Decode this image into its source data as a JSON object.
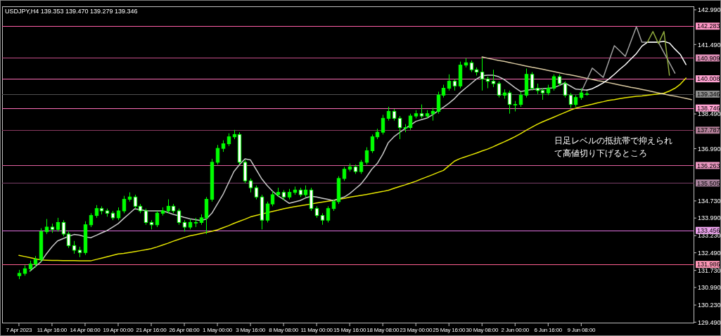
{
  "chart_data": {
    "type": "candlestick",
    "title": "USDJPY,H4  139.353 139.470 139.279 139.346",
    "annotations": [
      "日足レベルの抵抗帯で抑えられて高値切り下げるところ"
    ],
    "categories": [
      "7 Apr 2023",
      null,
      null,
      null,
      null,
      null,
      "11 Apr 16:00",
      null,
      null,
      null,
      null,
      null,
      "14 Apr 08:00",
      null,
      null,
      null,
      null,
      null,
      "19 Apr 00:00",
      null,
      null,
      null,
      null,
      null,
      "21 Apr 16:00",
      null,
      null,
      null,
      null,
      null,
      "26 Apr 08:00",
      null,
      null,
      null,
      null,
      null,
      "1 May 00:00",
      null,
      null,
      null,
      null,
      null,
      "3 May 16:00",
      null,
      null,
      null,
      null,
      null,
      "8 May 08:00",
      null,
      null,
      null,
      null,
      null,
      "11 May 00:00",
      null,
      null,
      null,
      null,
      null,
      "15 May 16:00",
      null,
      null,
      null,
      null,
      null,
      "18 May 08:00",
      null,
      null,
      null,
      null,
      null,
      "23 May 00:00",
      null,
      null,
      null,
      null,
      null,
      "25 May 16:00",
      null,
      null,
      null,
      null,
      null,
      "30 May 08:00",
      null,
      null,
      null,
      null,
      null,
      "2 Jun 00:00",
      null,
      null,
      null,
      null,
      null,
      "6 Jun 16:00",
      null,
      null,
      null,
      null,
      null,
      "9 Jun 08:00",
      null,
      null,
      null,
      null,
      null,
      null,
      null,
      null,
      null,
      null,
      null,
      null,
      null,
      null,
      null,
      null,
      null,
      null,
      null,
      null
    ],
    "ylim": [
      129.44,
      143.14
    ],
    "yticks": [
      {
        "value": 142.99,
        "label": "142.990"
      },
      {
        "value": 141.49,
        "label": "141.490"
      },
      {
        "value": 138.49,
        "label": "138.490"
      },
      {
        "value": 136.99,
        "label": "136.990"
      },
      {
        "value": 134.73,
        "label": "134.730"
      },
      {
        "value": 133.99,
        "label": "133.990"
      },
      {
        "value": 133.23,
        "label": "133.230"
      },
      {
        "value": 132.49,
        "label": "132.490"
      },
      {
        "value": 131.73,
        "label": "131.730"
      },
      {
        "value": 130.99,
        "label": "130.990"
      },
      {
        "value": 130.23,
        "label": "130.230"
      },
      {
        "value": 129.49,
        "label": "129.490"
      }
    ],
    "ref_lines": [
      {
        "axis": "y",
        "value": 142.283,
        "label": "142.283",
        "color": "#ff5fa8"
      },
      {
        "axis": "y",
        "value": 140.909,
        "label": "140.909",
        "color": "#c8508c"
      },
      {
        "axis": "y",
        "value": 140.008,
        "label": "140.008",
        "color": "#ff70b8"
      },
      {
        "axis": "y",
        "value": 139.346,
        "label": "139.346",
        "color": "#505050"
      },
      {
        "axis": "y",
        "value": 138.746,
        "label": "138.746",
        "color": "#ff70b8"
      },
      {
        "axis": "y",
        "value": 137.787,
        "label": "137.787",
        "color": "#8a3a60"
      },
      {
        "axis": "y",
        "value": 136.263,
        "label": "136.263",
        "color": "#e0609f"
      },
      {
        "axis": "y",
        "value": 135.505,
        "label": "135.505",
        "color": "#7a4068"
      },
      {
        "axis": "y",
        "value": 133.456,
        "label": "133.456",
        "color": "#e070e0"
      },
      {
        "axis": "y",
        "value": 131.986,
        "label": "131.986",
        "color": "#ff6090"
      }
    ],
    "series": [
      {
        "type": "line",
        "color": "#e6e600",
        "values": [
          132.38,
          132.33,
          132.28,
          132.23,
          132.18,
          132.17,
          132.16,
          132.16,
          132.15,
          132.15,
          132.15,
          132.14,
          132.14,
          132.14,
          132.2,
          132.26,
          132.32,
          132.38,
          132.44,
          132.46,
          132.5,
          132.54,
          132.58,
          132.62,
          132.67,
          132.74,
          132.82,
          132.9,
          132.99,
          133.07,
          133.15,
          133.22,
          133.27,
          133.32,
          133.37,
          133.42,
          133.48,
          133.57,
          133.66,
          133.76,
          133.85,
          133.94,
          134.04,
          134.1,
          134.16,
          134.22,
          134.28,
          134.33,
          134.39,
          134.44,
          134.48,
          134.52,
          134.56,
          134.6,
          134.64,
          134.68,
          134.72,
          134.75,
          134.8,
          134.84,
          134.89,
          134.93,
          134.97,
          135.01,
          135.05,
          135.1,
          135.14,
          135.19,
          135.27,
          135.35,
          135.42,
          135.5,
          135.58,
          135.68,
          135.77,
          135.86,
          135.96,
          136.05,
          136.25,
          136.45,
          136.56,
          136.64,
          136.72,
          136.8,
          136.89,
          136.97,
          137.07,
          137.18,
          137.28,
          137.39,
          137.51,
          137.64,
          137.78,
          137.91,
          138.04,
          138.15,
          138.25,
          138.35,
          138.45,
          138.55,
          138.65,
          138.74,
          138.8,
          138.86,
          138.91,
          138.97,
          139.02,
          139.08,
          139.11,
          139.15,
          139.19,
          139.22,
          139.25,
          139.27,
          139.3,
          139.33,
          139.36,
          139.39,
          139.48,
          139.6,
          139.78,
          140.04,
          null
        ]
      },
      {
        "type": "line",
        "color": "#c8c8c8",
        "values": [
          null,
          null,
          131.7,
          131.9,
          132.1,
          132.45,
          132.75,
          133.0,
          133.1,
          133.2,
          133.28,
          133.25,
          133.18,
          133.14,
          133.24,
          133.35,
          133.45,
          133.6,
          133.75,
          133.97,
          134.18,
          134.39,
          134.35,
          134.31,
          134.3,
          134.3,
          134.3,
          134.23,
          134.15,
          134.09,
          134.02,
          133.96,
          133.92,
          133.88,
          133.95,
          134.2,
          134.6,
          135.0,
          135.5,
          136.0,
          136.3,
          136.55,
          136.5,
          136.1,
          135.7,
          135.4,
          135.15,
          134.95,
          134.8,
          134.63,
          134.69,
          134.75,
          134.86,
          134.93,
          134.9,
          134.85,
          134.8,
          134.75,
          134.82,
          134.9,
          135.05,
          135.25,
          135.45,
          135.75,
          136.1,
          136.35,
          136.75,
          137.25,
          137.5,
          137.68,
          137.85,
          138.0,
          138.17,
          138.24,
          138.31,
          138.45,
          138.62,
          138.78,
          138.95,
          139.15,
          139.4,
          139.6,
          139.8,
          140.0,
          140.14,
          140.16,
          140.16,
          140.1,
          139.98,
          139.8,
          139.62,
          139.46,
          139.5,
          139.55,
          139.56,
          139.58,
          139.6,
          139.62,
          139.72,
          139.83,
          139.7,
          139.56,
          139.54,
          139.52,
          null,
          null,
          null,
          null,
          null,
          null,
          null,
          null,
          null,
          null,
          null,
          null,
          null,
          null,
          null,
          null,
          null,
          null,
          null
        ]
      },
      {
        "type": "line",
        "color": "#d8c8a0",
        "values": [
          null,
          null,
          null,
          null,
          null,
          null,
          null,
          null,
          null,
          null,
          null,
          null,
          null,
          null,
          null,
          null,
          null,
          null,
          null,
          null,
          null,
          null,
          null,
          null,
          null,
          null,
          null,
          null,
          null,
          null,
          null,
          null,
          null,
          null,
          null,
          null,
          null,
          null,
          null,
          null,
          null,
          null,
          null,
          null,
          null,
          null,
          null,
          null,
          null,
          null,
          null,
          null,
          null,
          null,
          null,
          null,
          null,
          null,
          null,
          null,
          null,
          null,
          null,
          null,
          null,
          null,
          null,
          null,
          null,
          null,
          null,
          null,
          null,
          null,
          null,
          null,
          null,
          null,
          null,
          null,
          null,
          null,
          null,
          null,
          140.95,
          140.9,
          140.85,
          140.8,
          140.76,
          140.71,
          140.66,
          140.61,
          140.56,
          140.51,
          140.47,
          140.42,
          140.37,
          140.32,
          140.27,
          140.22,
          140.18,
          140.13,
          140.08,
          140.03,
          139.98,
          139.93,
          139.89,
          139.84,
          139.79,
          139.74,
          139.69,
          139.64,
          139.6,
          139.55,
          139.5,
          139.45,
          139.4,
          139.35,
          139.3,
          139.26,
          139.21,
          139.16,
          139.11
        ]
      },
      {
        "type": "line",
        "color": "#a0a0a0",
        "values": [
          null,
          null,
          null,
          null,
          null,
          null,
          null,
          null,
          null,
          null,
          null,
          null,
          null,
          null,
          null,
          null,
          null,
          null,
          null,
          null,
          null,
          null,
          null,
          null,
          null,
          null,
          null,
          null,
          null,
          null,
          null,
          null,
          null,
          null,
          null,
          null,
          null,
          null,
          null,
          null,
          null,
          null,
          null,
          null,
          null,
          null,
          null,
          null,
          null,
          null,
          null,
          null,
          null,
          null,
          null,
          null,
          null,
          null,
          null,
          null,
          null,
          null,
          null,
          null,
          null,
          null,
          null,
          null,
          null,
          null,
          null,
          null,
          null,
          null,
          null,
          null,
          null,
          null,
          null,
          null,
          null,
          null,
          null,
          null,
          null,
          null,
          null,
          null,
          null,
          null,
          null,
          null,
          null,
          null,
          null,
          null,
          null,
          null,
          null,
          null,
          null,
          null,
          139.44,
          139.95,
          140.47,
          140.27,
          140.07,
          140.76,
          141.44,
          141.21,
          140.98,
          141.62,
          142.26,
          141.59,
          141.59,
          141.59,
          141.59,
          141.14,
          140.7,
          140.25,
          null,
          null,
          null
        ]
      },
      {
        "type": "line",
        "color": "#ffffff",
        "values": [
          null,
          null,
          null,
          null,
          null,
          null,
          null,
          null,
          null,
          null,
          null,
          null,
          null,
          null,
          null,
          null,
          null,
          null,
          null,
          null,
          null,
          null,
          null,
          null,
          null,
          null,
          null,
          null,
          null,
          null,
          null,
          null,
          null,
          null,
          null,
          null,
          null,
          null,
          null,
          null,
          null,
          null,
          null,
          null,
          null,
          null,
          null,
          null,
          null,
          null,
          null,
          null,
          null,
          null,
          null,
          null,
          null,
          null,
          null,
          null,
          null,
          null,
          null,
          null,
          null,
          null,
          null,
          null,
          null,
          null,
          null,
          null,
          null,
          null,
          null,
          null,
          null,
          null,
          null,
          null,
          null,
          null,
          null,
          null,
          null,
          null,
          null,
          null,
          null,
          null,
          null,
          null,
          null,
          null,
          null,
          null,
          null,
          null,
          null,
          null,
          null,
          null,
          null,
          139.52,
          139.58,
          139.7,
          139.83,
          140.0,
          140.2,
          140.42,
          140.62,
          140.86,
          141.1,
          141.42,
          141.59,
          141.59,
          141.59,
          141.63,
          141.55,
          141.29,
          141.05,
          140.62,
          null
        ]
      },
      {
        "type": "line",
        "color": "#8faa3c",
        "values": [
          null,
          null,
          null,
          null,
          null,
          null,
          null,
          null,
          null,
          null,
          null,
          null,
          null,
          null,
          null,
          null,
          null,
          null,
          null,
          null,
          null,
          null,
          null,
          null,
          null,
          null,
          null,
          null,
          null,
          null,
          null,
          null,
          null,
          null,
          null,
          null,
          null,
          null,
          null,
          null,
          null,
          null,
          null,
          null,
          null,
          null,
          null,
          null,
          null,
          null,
          null,
          null,
          null,
          null,
          null,
          null,
          null,
          null,
          null,
          null,
          null,
          null,
          null,
          null,
          null,
          null,
          null,
          null,
          null,
          null,
          null,
          null,
          null,
          null,
          null,
          null,
          null,
          null,
          null,
          null,
          null,
          null,
          null,
          null,
          null,
          null,
          null,
          null,
          null,
          null,
          null,
          null,
          null,
          null,
          null,
          null,
          null,
          null,
          null,
          null,
          null,
          null,
          null,
          null,
          null,
          null,
          null,
          null,
          null,
          null,
          null,
          null,
          null,
          null,
          141.59,
          142.05,
          141.53,
          142.05,
          140.16,
          null,
          null,
          null,
          null
        ]
      },
      {
        "color": "#00ff00",
        "ohlc": [
          [
            131.5,
            131.75,
            131.35,
            131.6
          ],
          [
            131.6,
            131.95,
            131.5,
            131.8
          ],
          [
            131.8,
            132.15,
            131.7,
            132.0
          ],
          [
            132.0,
            132.35,
            131.85,
            132.2
          ],
          [
            132.2,
            133.55,
            132.1,
            133.4
          ],
          [
            133.4,
            133.95,
            133.3,
            133.6
          ],
          [
            133.6,
            133.75,
            133.35,
            133.5
          ],
          [
            133.5,
            134.0,
            133.4,
            133.8
          ],
          [
            133.8,
            133.9,
            133.2,
            133.3
          ],
          [
            133.3,
            133.4,
            132.7,
            132.8
          ],
          [
            132.8,
            133.0,
            132.45,
            132.6
          ],
          [
            132.6,
            132.75,
            132.3,
            132.5
          ],
          [
            132.5,
            133.85,
            132.4,
            133.7
          ],
          [
            133.7,
            134.2,
            133.6,
            134.1
          ],
          [
            134.1,
            134.55,
            134.0,
            134.4
          ],
          [
            134.4,
            134.5,
            134.15,
            134.3
          ],
          [
            134.3,
            134.4,
            134.05,
            134.2
          ],
          [
            134.2,
            134.3,
            133.9,
            134.0
          ],
          [
            134.0,
            134.45,
            133.9,
            134.3
          ],
          [
            134.3,
            134.95,
            134.2,
            134.8
          ],
          [
            134.8,
            135.1,
            134.7,
            134.9
          ],
          [
            134.9,
            135.0,
            134.4,
            134.5
          ],
          [
            134.5,
            134.6,
            134.2,
            134.3
          ],
          [
            134.3,
            134.4,
            133.7,
            133.8
          ],
          [
            133.8,
            133.9,
            133.5,
            133.7
          ],
          [
            133.7,
            134.3,
            133.6,
            134.2
          ],
          [
            134.2,
            134.45,
            134.1,
            134.3
          ],
          [
            134.3,
            134.8,
            134.2,
            134.5
          ],
          [
            134.5,
            134.6,
            134.2,
            134.3
          ],
          [
            134.3,
            134.4,
            133.7,
            133.8
          ],
          [
            133.8,
            133.9,
            133.4,
            133.6
          ],
          [
            133.6,
            133.95,
            133.5,
            133.8
          ],
          [
            133.8,
            134.0,
            133.6,
            133.8
          ],
          [
            133.8,
            134.15,
            133.7,
            134.0
          ],
          [
            134.0,
            134.9,
            133.3,
            134.8
          ],
          [
            134.8,
            136.55,
            134.7,
            136.4
          ],
          [
            136.4,
            137.15,
            136.3,
            137.0
          ],
          [
            137.0,
            137.35,
            136.85,
            137.2
          ],
          [
            137.2,
            137.65,
            137.1,
            137.5
          ],
          [
            137.5,
            137.8,
            137.4,
            137.6
          ],
          [
            137.6,
            137.7,
            136.3,
            136.4
          ],
          [
            136.4,
            136.5,
            135.5,
            135.6
          ],
          [
            135.6,
            135.7,
            135.1,
            135.3
          ],
          [
            135.3,
            135.4,
            134.8,
            134.9
          ],
          [
            134.9,
            135.0,
            133.5,
            133.9
          ],
          [
            133.9,
            134.7,
            133.8,
            134.6
          ],
          [
            134.6,
            135.15,
            134.5,
            135.0
          ],
          [
            135.0,
            135.3,
            134.9,
            135.1
          ],
          [
            135.1,
            135.2,
            134.75,
            134.9
          ],
          [
            134.9,
            135.25,
            134.8,
            135.1
          ],
          [
            135.1,
            135.35,
            135.0,
            135.2
          ],
          [
            135.2,
            135.3,
            134.9,
            135.0
          ],
          [
            135.0,
            135.4,
            134.9,
            135.2
          ],
          [
            135.2,
            135.3,
            134.3,
            134.4
          ],
          [
            134.4,
            134.5,
            134.0,
            134.1
          ],
          [
            134.1,
            134.2,
            133.7,
            133.9
          ],
          [
            133.9,
            134.5,
            133.8,
            134.4
          ],
          [
            134.4,
            134.8,
            134.3,
            134.7
          ],
          [
            134.7,
            135.8,
            134.6,
            135.7
          ],
          [
            135.7,
            136.2,
            135.6,
            136.1
          ],
          [
            136.1,
            136.35,
            136.0,
            136.2
          ],
          [
            136.2,
            136.3,
            135.9,
            136.0
          ],
          [
            136.0,
            136.5,
            135.9,
            136.4
          ],
          [
            136.4,
            137.05,
            136.3,
            136.9
          ],
          [
            136.9,
            137.6,
            136.8,
            137.5
          ],
          [
            137.5,
            137.85,
            137.4,
            137.7
          ],
          [
            137.7,
            138.45,
            137.6,
            138.3
          ],
          [
            138.3,
            138.8,
            138.2,
            138.6
          ],
          [
            138.6,
            138.7,
            138.2,
            138.3
          ],
          [
            138.3,
            138.4,
            137.4,
            137.9
          ],
          [
            137.9,
            138.05,
            137.7,
            137.9
          ],
          [
            137.9,
            138.5,
            137.8,
            138.4
          ],
          [
            138.4,
            138.65,
            138.3,
            138.5
          ],
          [
            138.5,
            138.9,
            138.3,
            138.4
          ],
          [
            138.4,
            138.65,
            138.3,
            138.5
          ],
          [
            138.5,
            138.75,
            138.2,
            138.6
          ],
          [
            138.6,
            139.45,
            138.5,
            139.3
          ],
          [
            139.3,
            139.75,
            139.2,
            139.6
          ],
          [
            139.6,
            140.2,
            139.5,
            139.9
          ],
          [
            139.9,
            140.0,
            139.5,
            139.7
          ],
          [
            139.7,
            140.75,
            139.6,
            140.6
          ],
          [
            140.6,
            140.9,
            140.5,
            140.7
          ],
          [
            140.7,
            140.8,
            140.3,
            140.4
          ],
          [
            140.4,
            140.5,
            140.15,
            140.3
          ],
          [
            140.3,
            140.92,
            139.5,
            140.0
          ],
          [
            140.0,
            140.1,
            139.6,
            139.9
          ],
          [
            139.9,
            140.4,
            139.65,
            139.8
          ],
          [
            139.8,
            139.9,
            139.2,
            139.3
          ],
          [
            139.3,
            139.55,
            139.15,
            139.4
          ],
          [
            139.4,
            139.5,
            138.5,
            138.9
          ],
          [
            138.9,
            139.05,
            138.6,
            138.9
          ],
          [
            138.9,
            139.45,
            138.8,
            139.3
          ],
          [
            139.3,
            140.45,
            139.2,
            140.2
          ],
          [
            140.2,
            140.3,
            139.5,
            139.6
          ],
          [
            139.6,
            139.8,
            139.35,
            139.5
          ],
          [
            139.5,
            139.6,
            139.1,
            139.4
          ],
          [
            139.4,
            139.75,
            139.3,
            139.6
          ],
          [
            139.6,
            140.2,
            139.5,
            140.1
          ],
          [
            140.1,
            140.2,
            139.7,
            139.8
          ],
          [
            139.8,
            139.9,
            139.2,
            139.3
          ],
          [
            139.3,
            139.4,
            138.75,
            138.9
          ],
          [
            138.9,
            139.3,
            138.8,
            139.2
          ],
          [
            139.2,
            139.6,
            139.1,
            139.4
          ],
          [
            139.353,
            139.47,
            139.279,
            139.346
          ],
          null,
          null,
          null,
          null,
          null,
          null,
          null,
          null,
          null,
          null,
          null,
          null,
          null,
          null,
          null,
          null,
          null,
          null,
          null
        ]
      }
    ]
  }
}
